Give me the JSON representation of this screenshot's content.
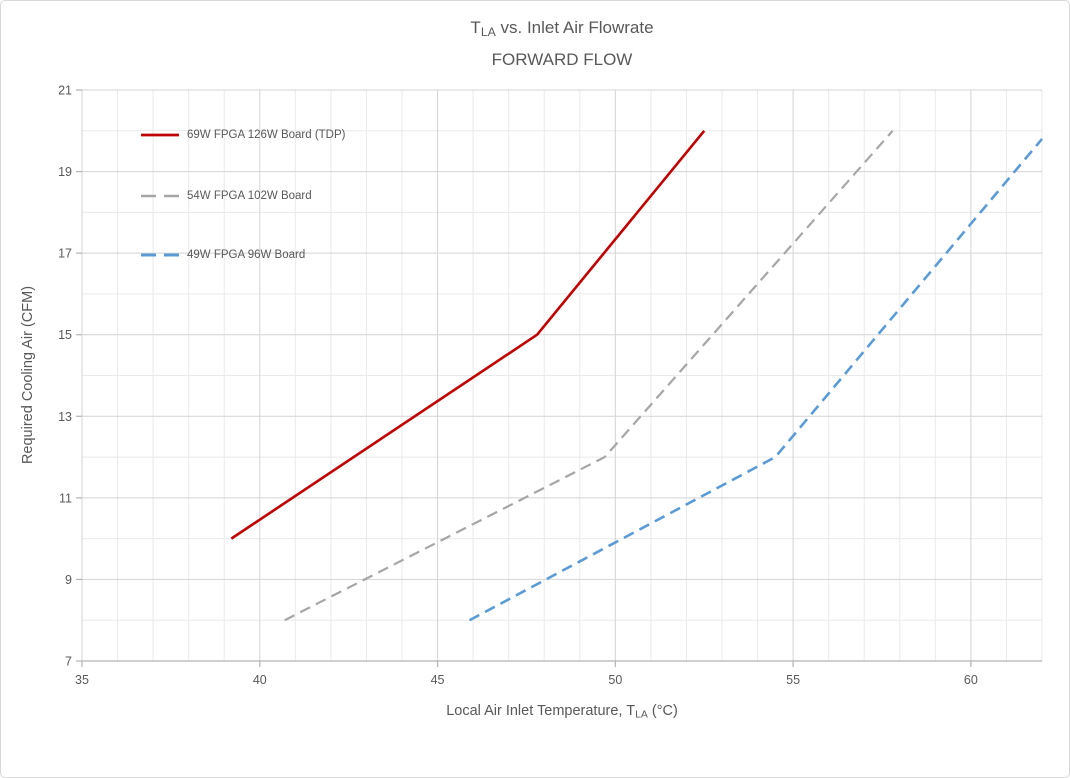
{
  "chart": {
    "border_color": "#d8d8d8",
    "background": "#ffffff",
    "text_color": "#595959"
  },
  "chart_data": {
    "type": "line",
    "title": "Tₗₐ vs. Inlet Air Flowrate",
    "title_parts": [
      {
        "text": "T"
      },
      {
        "text": "LA",
        "sub": true
      },
      {
        "text": " vs. Inlet Air Flowrate"
      }
    ],
    "subtitle": "FORWARD FLOW",
    "xlabel": "Local Air Inlet Temperature, T_LA (°C)",
    "xlabel_parts": [
      {
        "text": "Local Air Inlet Temperature, T"
      },
      {
        "text": "LA",
        "sub": true
      },
      {
        "text": "  (°C)"
      }
    ],
    "ylabel": "Required Cooling Air (CFM)",
    "xlim": [
      35,
      62
    ],
    "ylim": [
      7,
      21
    ],
    "x_ticks": [
      35,
      40,
      45,
      50,
      55,
      60
    ],
    "y_ticks": [
      7,
      9,
      11,
      13,
      15,
      17,
      19,
      21
    ],
    "grid_step_x": 1,
    "grid_step_y": 1,
    "grid_minor_color": "#eaeaea",
    "grid_major_color": "#d4d4d4",
    "axis_color": "#b3b3b3",
    "legend_position": "top-left-inside",
    "series": [
      {
        "name": "69W FPGA 126W Board (TDP)",
        "color": "#c00000",
        "style": "solid",
        "stroke_width": 2.6,
        "points": [
          [
            39.2,
            10
          ],
          [
            47.8,
            15
          ],
          [
            52.5,
            20
          ]
        ]
      },
      {
        "name": "54W FPGA 102W Board",
        "color": "#a6a6a6",
        "style": "dashed",
        "stroke_width": 2.2,
        "points": [
          [
            40.7,
            8
          ],
          [
            49.7,
            12
          ],
          [
            57.8,
            20
          ]
        ]
      },
      {
        "name": "49W FPGA 96W Board",
        "color": "#5b9bd5",
        "style": "dashed",
        "stroke_width": 2.6,
        "points": [
          [
            45.9,
            8
          ],
          [
            54.5,
            12
          ],
          [
            62,
            19.8
          ]
        ]
      }
    ]
  }
}
